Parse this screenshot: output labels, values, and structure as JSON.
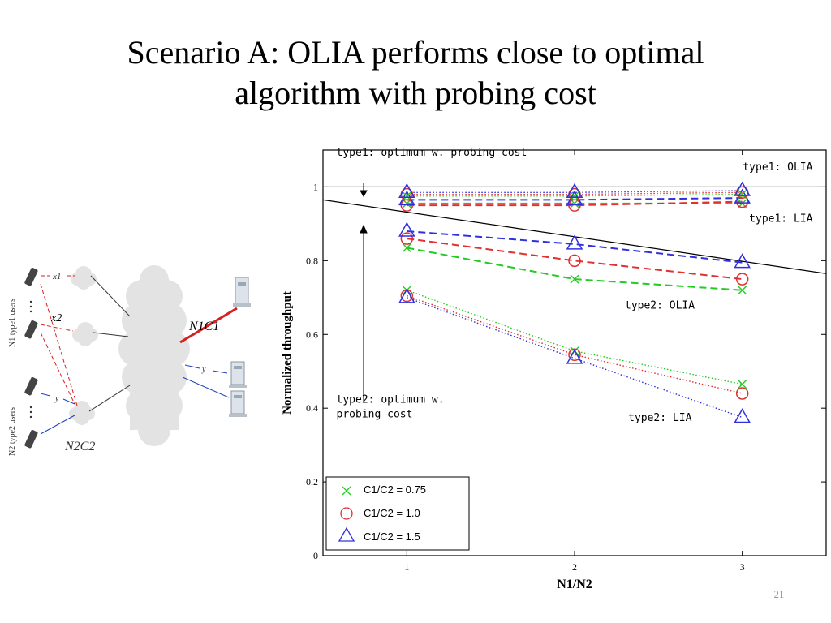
{
  "slide": {
    "title_line1": "Scenario A: OLIA performs close to optimal",
    "title_line2": "algorithm with probing cost",
    "page_number": "21"
  },
  "diagram": {
    "label_x1": "x1",
    "label_x2": "x2",
    "label_y_top": "y",
    "label_y_left": "y",
    "label_n1c1": "N1C1",
    "label_n2c2": "N2C2",
    "label_type1_users": "N1 type1 users",
    "label_type2_users": "N2 type2 users",
    "colors": {
      "type1": "#d62020",
      "type2": "#2040c0",
      "cloud": "#e3e3e3"
    }
  },
  "chart_data": {
    "type": "line",
    "xlabel": "N1/N2",
    "ylabel": "Normalized throughput",
    "xlim": [
      0.5,
      3.5
    ],
    "ylim": [
      0,
      1.1
    ],
    "x_ticks": [
      "1",
      "2",
      "3"
    ],
    "y_ticks": [
      "0",
      "0.2",
      "0.4",
      "0.6",
      "0.8",
      "1"
    ],
    "grid": false,
    "legend_placement": "bottom-left",
    "legend": [
      {
        "label": "C1/C2 = 0.75",
        "color": "#22cc22",
        "marker": "x"
      },
      {
        "label": "C1/C2 = 1.0",
        "color": "#e03030",
        "marker": "o"
      },
      {
        "label": "C1/C2 = 1.5",
        "color": "#3030e0",
        "marker": "triangle"
      }
    ],
    "series": [
      {
        "group": "type1-olia",
        "ratio": 0.75,
        "style": "dashed",
        "x": [
          1,
          2,
          3
        ],
        "y": [
          0.955,
          0.955,
          0.955
        ]
      },
      {
        "group": "type1-olia",
        "ratio": 1.0,
        "style": "dashed",
        "x": [
          1,
          2,
          3
        ],
        "y": [
          0.95,
          0.95,
          0.96
        ]
      },
      {
        "group": "type1-olia",
        "ratio": 1.5,
        "style": "dashed",
        "x": [
          1,
          2,
          3
        ],
        "y": [
          0.965,
          0.965,
          0.97
        ]
      },
      {
        "group": "type1-lia",
        "ratio": 0.75,
        "style": "dotted",
        "x": [
          1,
          2,
          3
        ],
        "y": [
          0.975,
          0.975,
          0.98
        ]
      },
      {
        "group": "type1-lia",
        "ratio": 1.0,
        "style": "dotted",
        "x": [
          1,
          2,
          3
        ],
        "y": [
          0.98,
          0.98,
          0.985
        ]
      },
      {
        "group": "type1-lia",
        "ratio": 1.5,
        "style": "dotted",
        "x": [
          1,
          2,
          3
        ],
        "y": [
          0.985,
          0.985,
          0.99
        ]
      },
      {
        "group": "type2-olia",
        "ratio": 0.75,
        "style": "dashed",
        "x": [
          1,
          2,
          3
        ],
        "y": [
          0.835,
          0.75,
          0.72
        ]
      },
      {
        "group": "type2-olia",
        "ratio": 1.0,
        "style": "dashed",
        "x": [
          1,
          2,
          3
        ],
        "y": [
          0.86,
          0.8,
          0.75
        ]
      },
      {
        "group": "type2-olia",
        "ratio": 1.5,
        "style": "dashed",
        "x": [
          1,
          2,
          3
        ],
        "y": [
          0.88,
          0.845,
          0.795
        ]
      },
      {
        "group": "type2-lia",
        "ratio": 0.75,
        "style": "dotted",
        "x": [
          1,
          2,
          3
        ],
        "y": [
          0.72,
          0.555,
          0.465
        ]
      },
      {
        "group": "type2-lia",
        "ratio": 1.0,
        "style": "dotted",
        "x": [
          1,
          2,
          3
        ],
        "y": [
          0.705,
          0.545,
          0.44
        ]
      },
      {
        "group": "type2-lia",
        "ratio": 1.5,
        "style": "dotted",
        "x": [
          1,
          2,
          3
        ],
        "y": [
          0.7,
          0.535,
          0.375
        ]
      }
    ],
    "reference_lines": [
      {
        "name": "type1 optimum",
        "style": "solid",
        "x": [
          0.5,
          3.5
        ],
        "y": [
          1.0,
          1.0
        ]
      },
      {
        "name": "type2 optimum",
        "style": "solid",
        "x": [
          0.5,
          3.5
        ],
        "y": [
          0.965,
          0.765
        ]
      }
    ],
    "annotations": [
      {
        "text": "type1: optimum w. probing cost",
        "x": 0.58,
        "y": 1.085
      },
      {
        "text": "type1: OLIA",
        "x": 3.42,
        "y": 1.045
      },
      {
        "text": "type1: LIA",
        "x": 3.42,
        "y": 0.905
      },
      {
        "text": "type2: OLIA",
        "x": 2.3,
        "y": 0.67
      },
      {
        "text": "type2: optimum w.",
        "x": 0.58,
        "y": 0.415
      },
      {
        "text": "probing cost",
        "x": 0.58,
        "y": 0.375
      },
      {
        "text": "type2: LIA",
        "x": 2.32,
        "y": 0.365
      }
    ]
  }
}
